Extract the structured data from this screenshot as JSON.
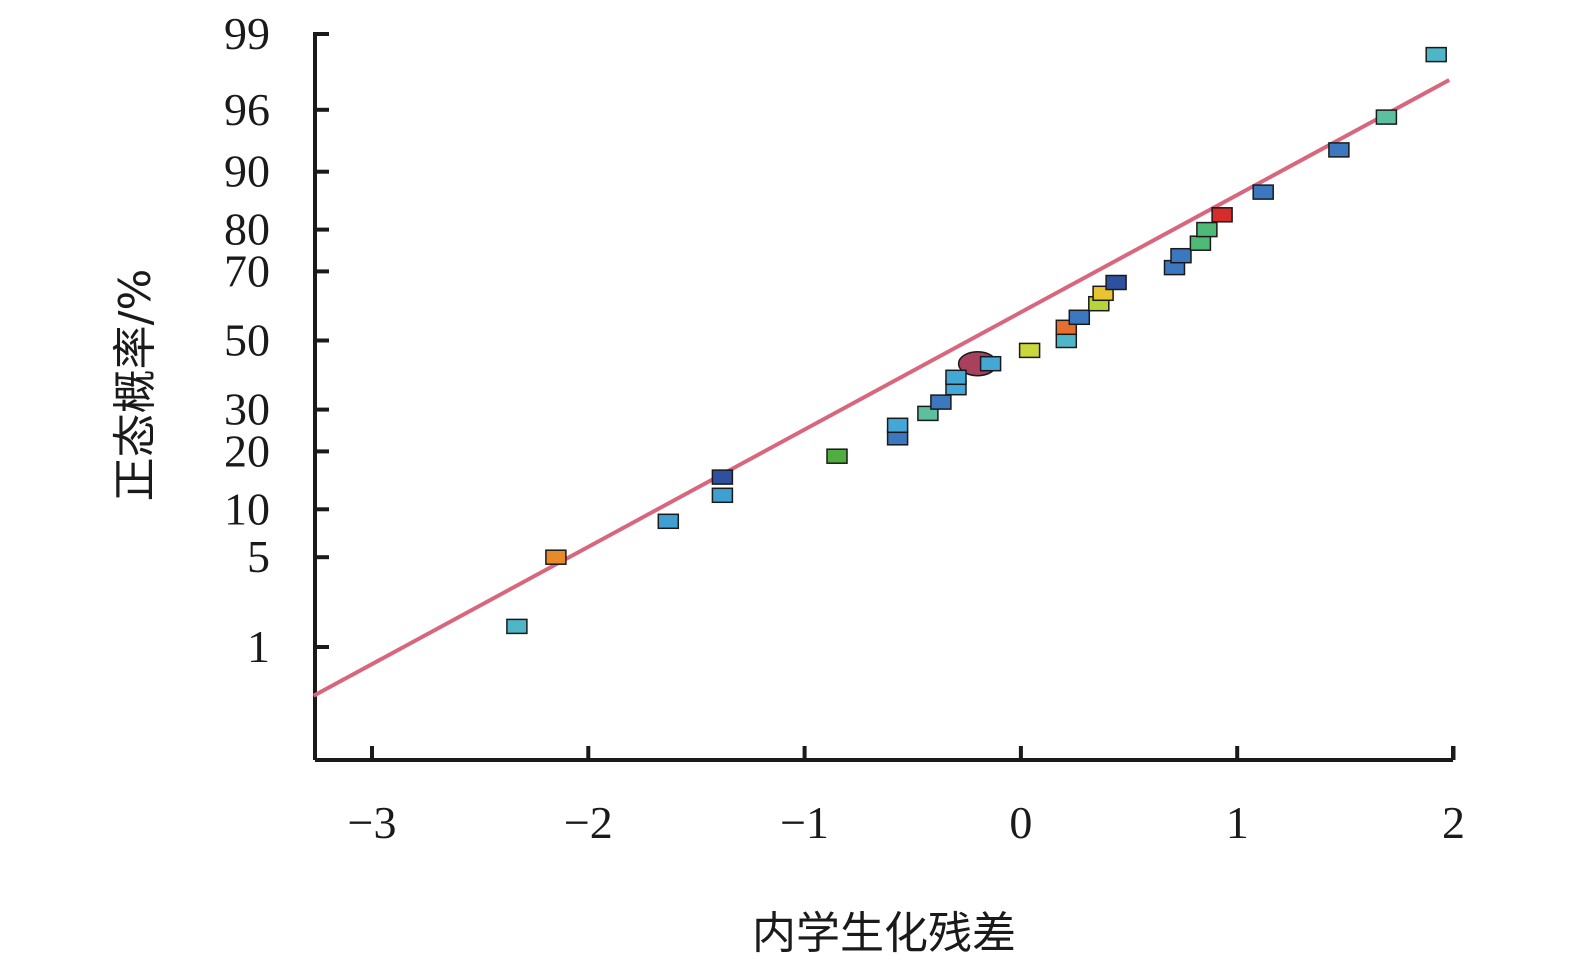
{
  "chart_data": {
    "type": "scatter",
    "title": "",
    "xlabel": "内学生化残差",
    "ylabel": "正态概率/%",
    "xlim": [
      -3.27,
      1.98
    ],
    "x_ticks": [
      -3,
      -2,
      -1,
      0,
      1,
      2
    ],
    "x_tick_labels": [
      "−3",
      "−2",
      "−1",
      "0",
      "1",
      "2"
    ],
    "y_scale": "normal-probability",
    "y_ticks": [
      1,
      5,
      10,
      20,
      30,
      50,
      70,
      80,
      90,
      96,
      99
    ],
    "y_tick_labels": [
      "1",
      "5",
      "10",
      "20",
      "30",
      "50",
      "70",
      "80",
      "90",
      "96",
      "99"
    ],
    "fit_line": {
      "x": [
        -3.27,
        1.98
      ],
      "y": [
        0.35,
        97.6
      ],
      "color": "#d8677e"
    },
    "points": [
      {
        "x": -2.33,
        "y": 1.5,
        "color": "#4fb6c8"
      },
      {
        "x": -2.15,
        "y": 5.0,
        "color": "#e8892a"
      },
      {
        "x": -1.63,
        "y": 8.5,
        "color": "#3f9fd0"
      },
      {
        "x": -1.38,
        "y": 12.0,
        "color": "#3f9fd0"
      },
      {
        "x": -1.38,
        "y": 15.0,
        "color": "#2f4f9f"
      },
      {
        "x": -0.85,
        "y": 19.0,
        "color": "#4fae3f"
      },
      {
        "x": -0.57,
        "y": 23.0,
        "color": "#3b78c0"
      },
      {
        "x": -0.57,
        "y": 26.0,
        "color": "#43a8d6"
      },
      {
        "x": -0.43,
        "y": 29.0,
        "color": "#5cc0a0"
      },
      {
        "x": -0.37,
        "y": 32.0,
        "color": "#3b78c0"
      },
      {
        "x": -0.3,
        "y": 36.0,
        "color": "#43a8d6"
      },
      {
        "x": -0.3,
        "y": 39.0,
        "color": "#43a8d6"
      },
      {
        "x": -0.14,
        "y": 43.0,
        "color": "#43a8d6"
      },
      {
        "x": 0.04,
        "y": 47.0,
        "color": "#c8d73a"
      },
      {
        "x": 0.21,
        "y": 50.0,
        "color": "#4fb6c8"
      },
      {
        "x": 0.21,
        "y": 54.0,
        "color": "#e66e2e"
      },
      {
        "x": 0.27,
        "y": 57.0,
        "color": "#3b78c0"
      },
      {
        "x": 0.36,
        "y": 61.0,
        "color": "#b5d53a"
      },
      {
        "x": 0.38,
        "y": 64.0,
        "color": "#e7c430"
      },
      {
        "x": 0.44,
        "y": 67.0,
        "color": "#2f4f9f"
      },
      {
        "x": 0.71,
        "y": 71.0,
        "color": "#3b78c0"
      },
      {
        "x": 0.74,
        "y": 74.0,
        "color": "#3b78c0"
      },
      {
        "x": 0.83,
        "y": 77.0,
        "color": "#4fba78"
      },
      {
        "x": 0.86,
        "y": 80.0,
        "color": "#4fba78"
      },
      {
        "x": 0.93,
        "y": 83.0,
        "color": "#d62c2c"
      },
      {
        "x": 1.12,
        "y": 87.0,
        "color": "#3b78c0"
      },
      {
        "x": 1.47,
        "y": 92.6,
        "color": "#3b78c0"
      },
      {
        "x": 1.69,
        "y": 95.5,
        "color": "#5cc0a0"
      },
      {
        "x": 1.92,
        "y": 98.5,
        "color": "#4fb6c8"
      }
    ],
    "highlight": {
      "x": -0.2,
      "y": 43.0,
      "color": "#a8405e"
    },
    "grid": false,
    "legend": "none"
  }
}
